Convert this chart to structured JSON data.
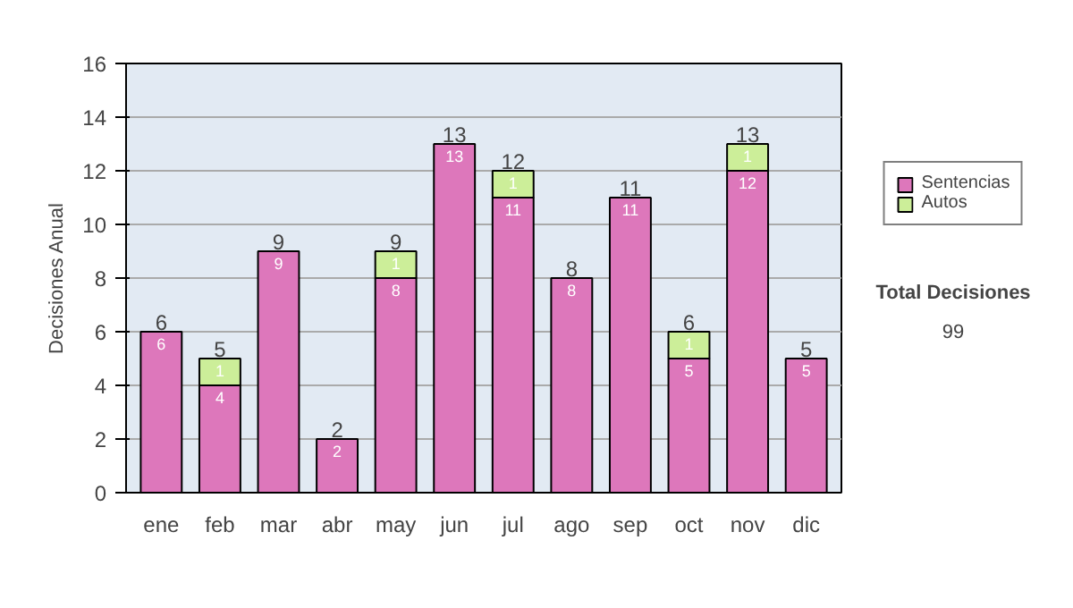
{
  "chart_data": {
    "type": "bar",
    "ylabel": "Decisiones Anual",
    "categories": [
      "ene",
      "feb",
      "mar",
      "abr",
      "may",
      "jun",
      "jul",
      "ago",
      "sep",
      "oct",
      "nov",
      "dic"
    ],
    "series": [
      {
        "name": "Sentencias",
        "color": "#dd77bb",
        "values": [
          6,
          4,
          9,
          2,
          8,
          13,
          11,
          8,
          11,
          5,
          12,
          5
        ]
      },
      {
        "name": "Autos",
        "color": "#ccee99",
        "values": [
          null,
          1,
          null,
          null,
          1,
          null,
          1,
          null,
          null,
          1,
          1,
          null
        ]
      }
    ],
    "stacked": true,
    "data_labels": true,
    "totals": [
      "6",
      "5",
      "9",
      "2",
      "9",
      "13",
      "12",
      "8",
      "11",
      "6",
      "13",
      "5"
    ],
    "ylim": [
      0,
      16
    ],
    "yticks": [
      0,
      2,
      4,
      6,
      8,
      10,
      12,
      14,
      16
    ],
    "grid": "y",
    "legend": "right",
    "annotations": [
      "Total Decisiones",
      "99"
    ]
  }
}
